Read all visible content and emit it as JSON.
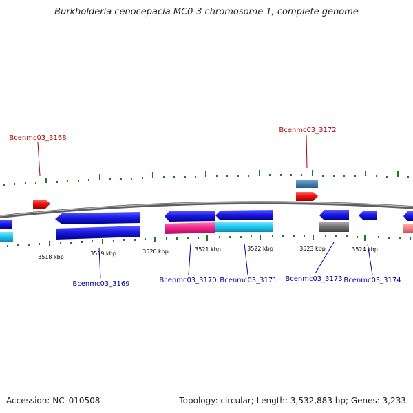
{
  "title": "Burkholderia cenocepacia MC0-3 chromosome 1, complete genome",
  "footer": {
    "accession": "Accession: NC_010508",
    "topology": "Topology: circular; Length: 3,532,883 bp; Genes: 3,233"
  },
  "scale_labels": [
    "3518 kbp",
    "3519 kbp",
    "3520 kbp",
    "3521 kbp",
    "3522 kbp",
    "3523 kbp",
    "3524 kbp"
  ],
  "gene_labels": {
    "bcenmc03_3168": "Bcenmc03_3168",
    "bcenmc03_3172": "Bcenmc03_3172",
    "bcenmc03_3169": "Bcenmc03_3169",
    "bcenmc03_3170": "Bcenmc03_3170",
    "bcenmc03_3171": "Bcenmc03_3171",
    "bcenmc03_3173": "Bcenmc03_3173",
    "bcenmc03_3174": "Bcenmc03_3174"
  },
  "colors": {
    "backbone": "#888888",
    "tick": "#1e7a1e",
    "cds_blue": "#1a1ae6",
    "rna_red": "#ee1111",
    "steel_blue": "#4682b4",
    "cyan": "#1ec8f0",
    "magenta": "#ee2288",
    "gray": "#707070",
    "pink": "#f08080",
    "label_red": "#b00000",
    "label_blue": "#00009a"
  }
}
